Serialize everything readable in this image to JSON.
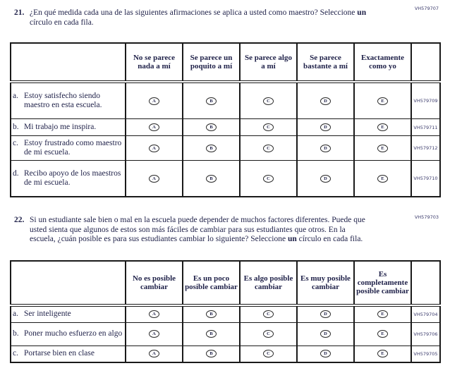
{
  "option_letters": [
    "A",
    "B",
    "C",
    "D",
    "E"
  ],
  "questions": [
    {
      "number": "21.",
      "code": "VH579707",
      "text_part1": "¿En qué medida cada una de las siguientes afirmaciones se aplica a usted como maestro? Seleccione",
      "text_bold": "un",
      "text_part2": "círculo en cada fila.",
      "table": {
        "headers": [
          "No se parece nada a mí",
          "Se parece un poquito a mí",
          "Se parece algo a mí",
          "Se parece bastante a mí",
          "Exactamente como yo"
        ],
        "rows": [
          {
            "letter": "a.",
            "text": "Estoy satisfecho siendo maestro en esta escuela.",
            "code": "VH579709"
          },
          {
            "letter": "b.",
            "text": "Mi trabajo me inspira.",
            "code": "VH579711"
          },
          {
            "letter": "c.",
            "text": "Estoy frustrado como maestro de mi escuela.",
            "code": "VH579712"
          },
          {
            "letter": "d.",
            "text": "Recibo apoyo de los maestros de mi escuela.",
            "code": "VH579710"
          }
        ]
      }
    },
    {
      "number": "22.",
      "code": "VH579703",
      "text_part1": "Si un estudiante sale bien o mal en la escuela puede depender de muchos factores diferentes. Puede que usted sienta que algunos de estos son más fáciles de cambiar para sus estudiantes que otros. En la escuela, ¿cuán posible es para sus estudiantes cambiar lo siguiente? Seleccione",
      "text_bold": "un",
      "text_part2": "círculo en cada fila.",
      "table": {
        "headers": [
          "No es posible cambiar",
          "Es un poco posible cambiar",
          "Es algo posible cambiar",
          "Es muy posible cambiar",
          "Es completamente posible cambiar"
        ],
        "rows": [
          {
            "letter": "a.",
            "text": "Ser inteligente",
            "code": "VH579704"
          },
          {
            "letter": "b.",
            "text": "Poner mucho esfuerzo en algo",
            "code": "VH579706"
          },
          {
            "letter": "c.",
            "text": "Portarse bien en clase",
            "code": "VH579705"
          }
        ]
      }
    }
  ]
}
